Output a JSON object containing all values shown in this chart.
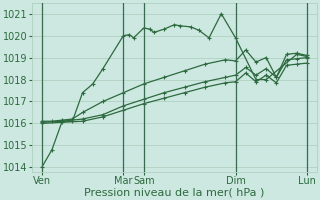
{
  "background_color": "#cce8e0",
  "grid_color": "#aaccbb",
  "line_color": "#2d6a3f",
  "ylim_min": 1013.8,
  "ylim_max": 1021.5,
  "yticks": [
    1014,
    1015,
    1016,
    1017,
    1018,
    1019,
    1020,
    1021
  ],
  "xlabel": "Pression niveau de la mer( hPa )",
  "xlabel_fontsize": 8,
  "tick_fontsize": 7,
  "xlim_min": 0,
  "xlim_max": 14,
  "xtick_positions": [
    0.5,
    4.5,
    5.5,
    10.0,
    13.5
  ],
  "xtick_labels": [
    "Ven",
    "Mar",
    "Sam",
    "Dim",
    "Lun"
  ],
  "vline_positions": [
    0.5,
    4.5,
    5.5,
    10.0,
    13.5
  ],
  "series1_x": [
    0.5,
    1.0,
    1.5,
    2.0,
    2.5,
    3.0,
    3.5,
    4.5,
    4.8,
    5.0,
    5.5,
    5.8,
    6.0,
    6.5,
    7.0,
    7.3,
    7.8,
    8.2,
    8.7,
    9.3,
    10.0,
    11.0,
    11.5,
    13.0,
    13.5
  ],
  "series1_y": [
    1014.0,
    1014.8,
    1016.1,
    1016.1,
    1017.4,
    1017.8,
    1018.5,
    1020.0,
    1020.05,
    1019.9,
    1020.35,
    1020.3,
    1020.15,
    1020.3,
    1020.5,
    1020.45,
    1020.4,
    1020.25,
    1019.9,
    1021.0,
    1019.9,
    1018.0,
    1018.0,
    1019.15,
    1019.05
  ],
  "series2_x": [
    0.5,
    1.0,
    1.5,
    2.0,
    2.5,
    3.5,
    4.5,
    5.5,
    6.5,
    7.5,
    8.5,
    9.5,
    10.0,
    10.5,
    11.0,
    11.5,
    12.0,
    12.5,
    13.0,
    13.5
  ],
  "series2_y": [
    1016.1,
    1016.1,
    1016.15,
    1016.2,
    1016.5,
    1017.0,
    1017.4,
    1017.8,
    1018.1,
    1018.4,
    1018.7,
    1018.9,
    1018.85,
    1019.35,
    1018.8,
    1019.0,
    1018.1,
    1019.15,
    1019.2,
    1019.1
  ],
  "series3_x": [
    0.5,
    1.5,
    2.5,
    3.5,
    4.5,
    5.5,
    6.5,
    7.5,
    8.5,
    9.5,
    10.0,
    10.5,
    11.0,
    11.5,
    12.0,
    12.5,
    13.0,
    13.5
  ],
  "series3_y": [
    1016.05,
    1016.1,
    1016.2,
    1016.4,
    1016.8,
    1017.1,
    1017.4,
    1017.65,
    1017.9,
    1018.1,
    1018.2,
    1018.55,
    1018.2,
    1018.5,
    1018.1,
    1018.9,
    1018.95,
    1019.0
  ],
  "series4_x": [
    0.5,
    1.5,
    2.5,
    3.5,
    4.5,
    5.5,
    6.5,
    7.5,
    8.5,
    9.5,
    10.0,
    10.5,
    11.0,
    11.5,
    12.0,
    12.5,
    13.0,
    13.5
  ],
  "series4_y": [
    1016.0,
    1016.05,
    1016.1,
    1016.3,
    1016.6,
    1016.9,
    1017.15,
    1017.4,
    1017.65,
    1017.85,
    1017.9,
    1018.3,
    1017.9,
    1018.2,
    1017.85,
    1018.65,
    1018.7,
    1018.75
  ]
}
